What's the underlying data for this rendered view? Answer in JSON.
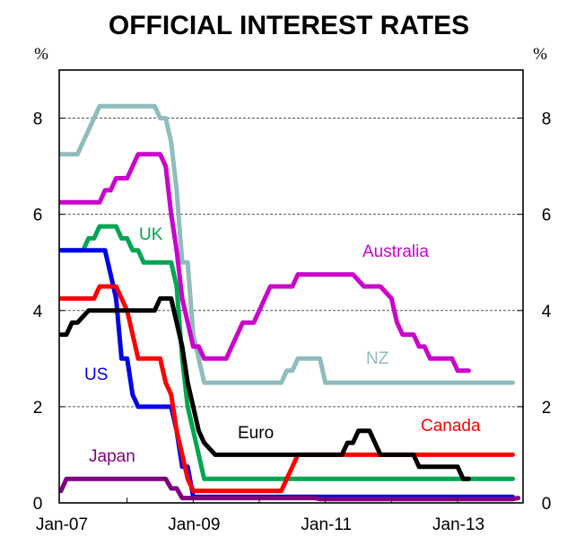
{
  "chart_data": {
    "type": "line",
    "title": "OFFICIAL INTEREST RATES",
    "ylabel_left": "%",
    "ylabel_right": "%",
    "ylim": [
      0,
      9
    ],
    "yticks": [
      0,
      2,
      4,
      6,
      8
    ],
    "ytick_labels": [
      "0",
      "2",
      "4",
      "6",
      "8"
    ],
    "x_start": "Jan-07",
    "x_unit": "months since Jan-07",
    "xlim": [
      0,
      84
    ],
    "xticks": [
      0,
      12,
      24,
      36,
      48,
      60,
      72,
      84
    ],
    "xtick_labels": [
      {
        "month": 0,
        "label": "Jan-07"
      },
      {
        "month": 24,
        "label": "Jan-09"
      },
      {
        "month": 48,
        "label": "Jan-11"
      },
      {
        "month": 72,
        "label": "Jan-13"
      }
    ],
    "grid": "horizontal dashed",
    "series": [
      {
        "name": "NZ",
        "label": "NZ",
        "color": "#8fbcbc",
        "points": [
          [
            0,
            7.25
          ],
          [
            3,
            7.25
          ],
          [
            5,
            7.75
          ],
          [
            7,
            8.25
          ],
          [
            17,
            8.25
          ],
          [
            18,
            8.0
          ],
          [
            19,
            8.0
          ],
          [
            20,
            7.5
          ],
          [
            21,
            6.5
          ],
          [
            22,
            5.0
          ],
          [
            23,
            5.0
          ],
          [
            24,
            3.5
          ],
          [
            25,
            3.0
          ],
          [
            26,
            2.5
          ],
          [
            40,
            2.5
          ],
          [
            41,
            2.75
          ],
          [
            42,
            2.75
          ],
          [
            43,
            3.0
          ],
          [
            47,
            3.0
          ],
          [
            48,
            2.5
          ],
          [
            82,
            2.5
          ]
        ]
      },
      {
        "name": "Australia",
        "label": "Australia",
        "color": "#cc00cc",
        "points": [
          [
            0,
            6.25
          ],
          [
            7,
            6.25
          ],
          [
            8,
            6.5
          ],
          [
            9,
            6.5
          ],
          [
            10,
            6.75
          ],
          [
            12,
            6.75
          ],
          [
            14,
            7.25
          ],
          [
            18,
            7.25
          ],
          [
            19,
            7.0
          ],
          [
            20,
            6.0
          ],
          [
            21,
            5.25
          ],
          [
            22,
            4.25
          ],
          [
            24,
            3.25
          ],
          [
            25,
            3.25
          ],
          [
            26,
            3.0
          ],
          [
            30,
            3.0
          ],
          [
            33,
            3.75
          ],
          [
            35,
            3.75
          ],
          [
            38,
            4.5
          ],
          [
            42,
            4.5
          ],
          [
            43,
            4.75
          ],
          [
            53,
            4.75
          ],
          [
            55,
            4.5
          ],
          [
            58,
            4.5
          ],
          [
            60,
            4.25
          ],
          [
            61,
            3.75
          ],
          [
            62,
            3.5
          ],
          [
            64,
            3.5
          ],
          [
            65,
            3.25
          ],
          [
            66,
            3.25
          ],
          [
            67,
            3.0
          ],
          [
            71,
            3.0
          ],
          [
            72,
            2.75
          ],
          [
            74,
            2.75
          ]
        ]
      },
      {
        "name": "UK",
        "label": "UK",
        "color": "#00a651",
        "points": [
          [
            0,
            5.25
          ],
          [
            4,
            5.25
          ],
          [
            5,
            5.5
          ],
          [
            6,
            5.5
          ],
          [
            7,
            5.75
          ],
          [
            10,
            5.75
          ],
          [
            11,
            5.5
          ],
          [
            12,
            5.5
          ],
          [
            13,
            5.25
          ],
          [
            14,
            5.25
          ],
          [
            15,
            5.0
          ],
          [
            20,
            5.0
          ],
          [
            21,
            4.5
          ],
          [
            22,
            3.0
          ],
          [
            23,
            2.0
          ],
          [
            24,
            1.5
          ],
          [
            25,
            1.0
          ],
          [
            26,
            0.5
          ],
          [
            82,
            0.5
          ]
        ]
      },
      {
        "name": "US",
        "label": "US",
        "color": "#0000ee",
        "points": [
          [
            0,
            5.25
          ],
          [
            8,
            5.25
          ],
          [
            9,
            4.75
          ],
          [
            10,
            4.25
          ],
          [
            11,
            3.0
          ],
          [
            12,
            3.0
          ],
          [
            13,
            2.25
          ],
          [
            14,
            2.0
          ],
          [
            20,
            2.0
          ],
          [
            21,
            1.5
          ],
          [
            22,
            0.75
          ],
          [
            23,
            0.75
          ],
          [
            24,
            0.125
          ],
          [
            82,
            0.125
          ]
        ]
      },
      {
        "name": "Canada",
        "label": "Canada",
        "color": "#ff0000",
        "points": [
          [
            0,
            4.25
          ],
          [
            6,
            4.25
          ],
          [
            7,
            4.5
          ],
          [
            10,
            4.5
          ],
          [
            11,
            4.25
          ],
          [
            12,
            4.0
          ],
          [
            14,
            3.0
          ],
          [
            18,
            3.0
          ],
          [
            19,
            2.5
          ],
          [
            20,
            2.25
          ],
          [
            21,
            1.5
          ],
          [
            22,
            1.0
          ],
          [
            23,
            0.5
          ],
          [
            24,
            0.25
          ],
          [
            40,
            0.25
          ],
          [
            41,
            0.5
          ],
          [
            42,
            0.75
          ],
          [
            43,
            1.0
          ],
          [
            82,
            1.0
          ]
        ]
      },
      {
        "name": "Euro",
        "label": "Euro",
        "color": "#000000",
        "points": [
          [
            0,
            3.5
          ],
          [
            1,
            3.5
          ],
          [
            2,
            3.75
          ],
          [
            3,
            3.75
          ],
          [
            5,
            4.0
          ],
          [
            17,
            4.0
          ],
          [
            18,
            4.25
          ],
          [
            20,
            4.25
          ],
          [
            21,
            3.75
          ],
          [
            22,
            3.25
          ],
          [
            23,
            2.5
          ],
          [
            24,
            2.0
          ],
          [
            25,
            1.5
          ],
          [
            26,
            1.25
          ],
          [
            28,
            1.0
          ],
          [
            51,
            1.0
          ],
          [
            52,
            1.25
          ],
          [
            53,
            1.25
          ],
          [
            54,
            1.5
          ],
          [
            56,
            1.5
          ],
          [
            58,
            1.0
          ],
          [
            64,
            1.0
          ],
          [
            65,
            0.75
          ],
          [
            70,
            0.75
          ],
          [
            72,
            0.75
          ],
          [
            73,
            0.5
          ],
          [
            74,
            0.5
          ]
        ]
      },
      {
        "name": "Japan",
        "label": "Japan",
        "color": "#7f007f",
        "points": [
          [
            0,
            0.25
          ],
          [
            1,
            0.5
          ],
          [
            19,
            0.5
          ],
          [
            20,
            0.3
          ],
          [
            21,
            0.3
          ],
          [
            22,
            0.1
          ],
          [
            46,
            0.1
          ],
          [
            47,
            0.08
          ],
          [
            82,
            0.08
          ],
          [
            83,
            0.1
          ]
        ]
      }
    ]
  }
}
